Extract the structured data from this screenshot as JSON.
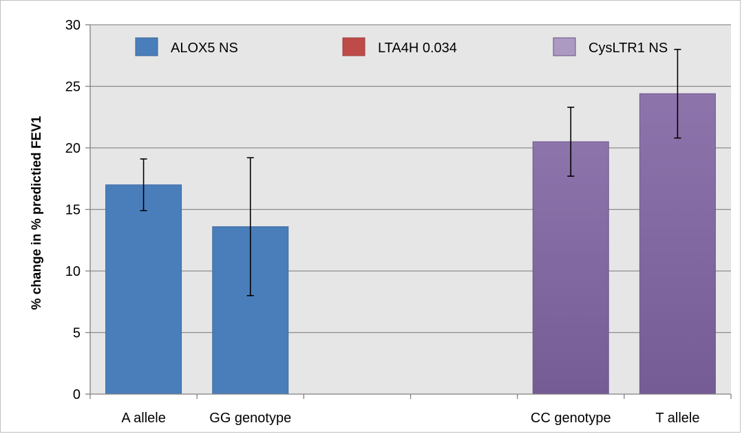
{
  "chart_data": {
    "type": "bar",
    "title": "",
    "xlabel": "",
    "ylabel": "% change in % predictied FEV1",
    "ylim": [
      0,
      30
    ],
    "yticks": [
      0,
      5,
      10,
      15,
      20,
      25,
      30
    ],
    "grid": true,
    "legend_position": "top",
    "categories": [
      "A allele",
      "GG genotype",
      "",
      "",
      "CC genotype",
      "T allele"
    ],
    "series": [
      {
        "name": "ALOX5 NS",
        "color": "#4a7ebb",
        "values": [
          17.0,
          13.6,
          null,
          null,
          null,
          null
        ],
        "error": [
          2.1,
          5.6,
          null,
          null,
          null,
          null
        ]
      },
      {
        "name": "LTA4H 0.034",
        "color": "#be4b48",
        "values": [
          null,
          null,
          null,
          null,
          null,
          null
        ],
        "error": [
          null,
          null,
          null,
          null,
          null,
          null
        ]
      },
      {
        "name": "CysLTR1 NS",
        "color": "#8064a2",
        "values": [
          null,
          null,
          null,
          null,
          20.5,
          24.4
        ],
        "error": [
          null,
          null,
          null,
          null,
          2.8,
          3.6
        ]
      }
    ]
  },
  "colors": {
    "plot_background": "#e6e6e6",
    "gridline": "#8c8c8c",
    "axis": "#808080",
    "error_bar": "#000000"
  }
}
